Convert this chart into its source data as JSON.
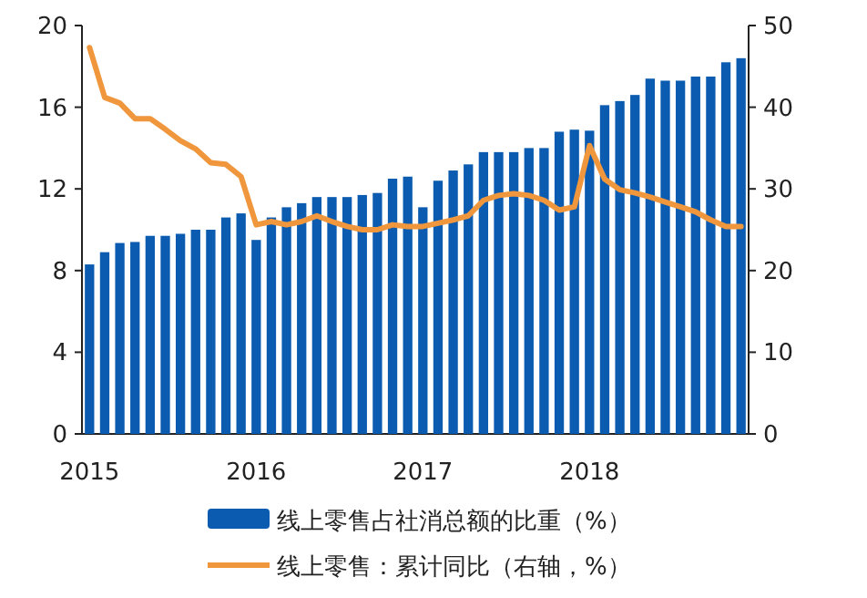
{
  "chart_data": {
    "type": "bar",
    "categories": [
      "2015",
      null,
      null,
      null,
      null,
      null,
      null,
      null,
      null,
      null,
      null,
      "2016",
      null,
      null,
      null,
      null,
      null,
      null,
      null,
      null,
      null,
      null,
      "2017",
      null,
      null,
      null,
      null,
      null,
      null,
      null,
      null,
      null,
      null,
      "2018",
      null,
      null,
      null,
      null,
      null,
      null,
      null,
      null,
      null,
      null
    ],
    "series": [
      {
        "name": "线上零售占社消总额的比重（%）",
        "color": "#0b5cb0",
        "values": [
          8.3,
          8.9,
          9.35,
          9.4,
          9.7,
          9.7,
          9.8,
          10.0,
          10.0,
          10.6,
          10.8,
          9.5,
          10.6,
          11.1,
          11.3,
          11.6,
          11.6,
          11.6,
          11.7,
          11.8,
          12.5,
          12.6,
          11.1,
          12.4,
          12.9,
          13.2,
          13.8,
          13.8,
          13.8,
          14.0,
          14.0,
          14.8,
          14.9,
          14.85,
          16.1,
          16.3,
          16.6,
          17.4,
          17.3,
          17.3,
          17.5,
          17.5,
          18.2,
          18.4
        ]
      },
      {
        "name": "线上零售：累计同比（右轴，%）",
        "color": "#f0963c",
        "type": "line",
        "axis": "y2",
        "values": [
          47.3,
          41.2,
          40.5,
          38.6,
          38.6,
          37.3,
          35.9,
          34.9,
          33.2,
          33.0,
          31.5,
          25.6,
          26.0,
          25.6,
          26.0,
          26.7,
          26.0,
          25.4,
          25.0,
          25.0,
          25.6,
          25.4,
          25.4,
          25.8,
          26.2,
          26.7,
          28.6,
          29.2,
          29.4,
          29.2,
          28.6,
          27.4,
          27.8,
          35.3,
          31.2,
          29.9,
          29.5,
          29.0,
          28.4,
          27.8,
          27.2,
          26.2,
          25.4,
          25.4
        ]
      }
    ],
    "ylim": [
      0,
      20
    ],
    "yticks": [
      0,
      4,
      8,
      12,
      16,
      20
    ],
    "y2lim": [
      0,
      50
    ],
    "y2ticks": [
      0,
      10,
      20,
      30,
      40,
      50
    ],
    "legend": "bottom"
  }
}
